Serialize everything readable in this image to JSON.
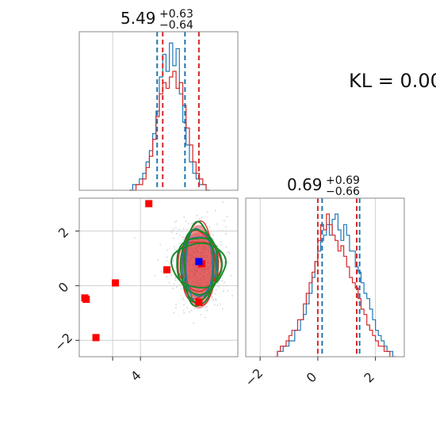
{
  "kl_label": "KL = 0.00",
  "colors": {
    "blue": "#1f77b4",
    "red": "#d62728",
    "green": "#1a8a2a",
    "grid": "#d0d0d0",
    "frame": "#888888",
    "scatter": "#cfd3d8"
  },
  "chart_data": [
    {
      "type": "histogram",
      "panel": "top-left",
      "title_value": "5.49",
      "title_plus": "+0.63",
      "title_minus": "−0.64",
      "xlim": [
        1.8,
        7.5
      ],
      "ylim": [
        0,
        28
      ],
      "vlines_blue": [
        4.6,
        5.6
      ],
      "vlines_red": [
        4.8,
        6.1
      ],
      "series": [
        {
          "name": "blue",
          "x_start": 3.6,
          "bin_width": 0.12,
          "counts": [
            0,
            1,
            1,
            2,
            3,
            5,
            7,
            10,
            14,
            20,
            24,
            21,
            26,
            22,
            25,
            17,
            12,
            8,
            5,
            3,
            2,
            1,
            1,
            0
          ]
        },
        {
          "name": "red",
          "x_start": 3.6,
          "bin_width": 0.12,
          "counts": [
            0,
            0,
            1,
            1,
            2,
            4,
            6,
            9,
            13,
            17,
            19,
            18,
            20,
            21,
            18,
            19,
            15,
            11,
            8,
            5,
            3,
            2,
            1,
            0
          ]
        }
      ]
    },
    {
      "type": "histogram",
      "panel": "bottom-right",
      "title_value": "0.69",
      "title_plus": "+0.69",
      "title_minus": "−0.66",
      "xlim": [
        -2.5,
        3.0
      ],
      "ylim": [
        0,
        30
      ],
      "xticks": [
        -2,
        0,
        2
      ],
      "xticklabels": [
        "−2",
        "0",
        "2"
      ],
      "vlines_blue": [
        0.15,
        1.45
      ],
      "vlines_red": [
        0.0,
        1.35
      ],
      "series": [
        {
          "name": "blue",
          "x_start": -1.5,
          "bin_width": 0.1,
          "counts": [
            0,
            1,
            1,
            2,
            2,
            3,
            3,
            5,
            5,
            7,
            8,
            10,
            12,
            15,
            18,
            20,
            22,
            23,
            25,
            23,
            26,
            27,
            24,
            22,
            25,
            23,
            20,
            20,
            17,
            16,
            14,
            12,
            11,
            9,
            7,
            5,
            4,
            3,
            2,
            1,
            1,
            0
          ]
        },
        {
          "name": "red",
          "x_start": -1.5,
          "bin_width": 0.1,
          "counts": [
            0,
            1,
            2,
            2,
            3,
            4,
            5,
            5,
            7,
            7,
            10,
            12,
            14,
            16,
            18,
            22,
            25,
            24,
            27,
            25,
            23,
            22,
            20,
            21,
            19,
            17,
            15,
            14,
            13,
            11,
            9,
            8,
            6,
            5,
            4,
            3,
            2,
            2,
            1,
            1,
            0,
            0
          ]
        }
      ]
    },
    {
      "type": "scatter",
      "panel": "bottom-left",
      "xlim": [
        1.8,
        7.5
      ],
      "ylim": [
        -2.6,
        3.2
      ],
      "xticks": [
        4
      ],
      "xticklabels": [
        "4"
      ],
      "yticks": [
        -2,
        0,
        2
      ],
      "yticklabels": [
        "−2",
        "0",
        "2"
      ],
      "red_squares": [
        [
          2.0,
          -0.45
        ],
        [
          2.05,
          -0.5
        ],
        [
          2.4,
          -1.9
        ],
        [
          3.1,
          0.1
        ],
        [
          4.3,
          3.0
        ],
        [
          4.95,
          0.58
        ],
        [
          6.1,
          -0.6
        ],
        [
          6.2,
          0.8
        ]
      ],
      "blue_square": [
        6.1,
        0.88
      ],
      "ellipse_center": [
        6.1,
        0.75
      ],
      "green_contours": [
        [
          0.55,
          1.7
        ],
        [
          0.7,
          1.45
        ],
        [
          0.85,
          1.15
        ],
        [
          1.02,
          0.9
        ]
      ],
      "red_contours": [
        [
          0.62,
          1.7
        ],
        [
          0.72,
          1.35
        ],
        [
          0.82,
          1.0
        ]
      ],
      "blue_contours": [
        [
          0.5,
          1.5
        ],
        [
          0.65,
          1.2
        ]
      ]
    }
  ]
}
